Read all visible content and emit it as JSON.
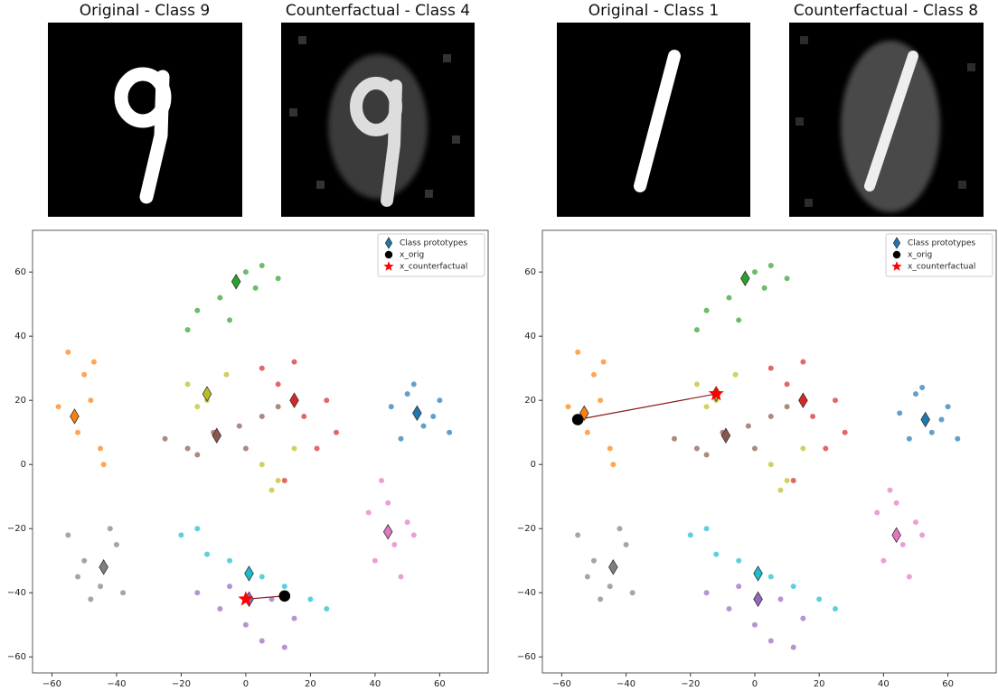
{
  "chart_data": [
    {
      "type": "image",
      "title": "Original - Class 9"
    },
    {
      "type": "image",
      "title": "Counterfactual - Class 4"
    },
    {
      "type": "image",
      "title": "Original - Class 1"
    },
    {
      "type": "image",
      "title": "Counterfactual - Class 8"
    },
    {
      "type": "scatter",
      "xlim": [
        -66,
        75
      ],
      "ylim": [
        -65,
        73
      ],
      "xticks": [
        {
          "value": -60,
          "label": "−60"
        },
        {
          "value": -40,
          "label": "−40"
        },
        {
          "value": -20,
          "label": "−20"
        },
        0,
        20,
        40,
        60
      ],
      "yticks": [
        {
          "value": -60,
          "label": "−60"
        },
        {
          "value": -40,
          "label": "−40"
        },
        {
          "value": -20,
          "label": "−20"
        },
        0,
        20,
        40,
        60
      ],
      "legend": "upper right",
      "connector_color": "#8b1a1a",
      "series": [
        {
          "color": "#1f77b4",
          "x": [
            45,
            50,
            55,
            60,
            48,
            58,
            63,
            52
          ],
          "values": [
            18,
            22,
            12,
            20,
            8,
            15,
            10,
            25
          ]
        },
        {
          "color": "#ff7f0e",
          "x": [
            -55,
            -50,
            -48,
            -45,
            -58,
            -52,
            -44,
            -47
          ],
          "values": [
            35,
            28,
            20,
            5,
            18,
            10,
            0,
            32
          ]
        },
        {
          "color": "#2ca02c",
          "x": [
            -15,
            -8,
            0,
            5,
            10,
            -5,
            -18,
            3
          ],
          "values": [
            48,
            52,
            60,
            62,
            58,
            45,
            42,
            55
          ]
        },
        {
          "color": "#d62728",
          "x": [
            5,
            10,
            18,
            25,
            22,
            12,
            28,
            15
          ],
          "values": [
            30,
            25,
            15,
            20,
            5,
            -5,
            10,
            32
          ]
        },
        {
          "color": "#9467bd",
          "x": [
            -15,
            -8,
            0,
            8,
            15,
            5,
            -5,
            12
          ],
          "values": [
            -40,
            -45,
            -50,
            -42,
            -48,
            -55,
            -38,
            -57
          ]
        },
        {
          "color": "#8c564b",
          "x": [
            -25,
            -18,
            -10,
            -2,
            5,
            -15,
            0,
            10
          ],
          "values": [
            8,
            5,
            10,
            12,
            15,
            3,
            5,
            18
          ]
        },
        {
          "color": "#e377c2",
          "x": [
            38,
            42,
            46,
            50,
            40,
            48,
            44,
            52
          ],
          "values": [
            -15,
            -5,
            -25,
            -18,
            -30,
            -35,
            -12,
            -22
          ]
        },
        {
          "color": "#7f7f7f",
          "x": [
            -55,
            -50,
            -45,
            -40,
            -48,
            -42,
            -52,
            -38
          ],
          "values": [
            -22,
            -30,
            -38,
            -25,
            -42,
            -20,
            -35,
            -40
          ]
        },
        {
          "color": "#bcbd22",
          "x": [
            -18,
            -12,
            -6,
            -15,
            5,
            10,
            15,
            8
          ],
          "values": [
            25,
            20,
            28,
            18,
            0,
            -5,
            5,
            -8
          ]
        },
        {
          "color": "#17becf",
          "x": [
            -20,
            -12,
            -5,
            5,
            12,
            20,
            -15,
            25
          ],
          "values": [
            -22,
            -28,
            -30,
            -35,
            -38,
            -42,
            -20,
            -45
          ]
        },
        {
          "name": "Class prototypes",
          "marker": "diamond",
          "colors": [
            "#1f77b4",
            "#ff7f0e",
            "#2ca02c",
            "#d62728",
            "#9467bd",
            "#8c564b",
            "#e377c2",
            "#7f7f7f",
            "#bcbd22",
            "#17becf"
          ],
          "x": [
            53,
            -53,
            -3,
            15,
            1,
            -9,
            44,
            -44,
            -12,
            1
          ],
          "values": [
            16,
            15,
            57,
            20,
            -42,
            9,
            -21,
            -32,
            22,
            -34
          ]
        },
        {
          "name": "x_orig",
          "marker": "circle",
          "color": "#000000",
          "x": [
            12
          ],
          "values": [
            -41
          ]
        },
        {
          "name": "x_counterfactual",
          "marker": "star",
          "color": "#ff0000",
          "x": [
            0
          ],
          "values": [
            -42
          ]
        }
      ]
    },
    {
      "type": "scatter",
      "xlim": [
        -66,
        75
      ],
      "ylim": [
        -65,
        73
      ],
      "xticks": [
        {
          "value": -60,
          "label": "−60"
        },
        {
          "value": -40,
          "label": "−40"
        },
        {
          "value": -20,
          "label": "−20"
        },
        0,
        20,
        40,
        60
      ],
      "yticks": [
        {
          "value": -60,
          "label": "−60"
        },
        {
          "value": -40,
          "label": "−40"
        },
        {
          "value": -20,
          "label": "−20"
        },
        0,
        20,
        40,
        60
      ],
      "legend": "upper right",
      "connector_color": "#8b1a1a",
      "series": [
        {
          "color": "#1f77b4",
          "x": [
            45,
            50,
            55,
            60,
            48,
            58,
            63,
            52
          ],
          "values": [
            16,
            22,
            10,
            18,
            8,
            14,
            8,
            24
          ]
        },
        {
          "color": "#ff7f0e",
          "x": [
            -55,
            -50,
            -48,
            -45,
            -58,
            -52,
            -44,
            -47
          ],
          "values": [
            35,
            28,
            20,
            5,
            18,
            10,
            0,
            32
          ]
        },
        {
          "color": "#2ca02c",
          "x": [
            -15,
            -8,
            0,
            5,
            10,
            -5,
            -18,
            3
          ],
          "values": [
            48,
            52,
            60,
            62,
            58,
            45,
            42,
            55
          ]
        },
        {
          "color": "#d62728",
          "x": [
            5,
            10,
            18,
            25,
            22,
            12,
            28,
            15
          ],
          "values": [
            30,
            25,
            15,
            20,
            5,
            -5,
            10,
            32
          ]
        },
        {
          "color": "#9467bd",
          "x": [
            -15,
            -8,
            0,
            8,
            15,
            5,
            -5,
            12
          ],
          "values": [
            -40,
            -45,
            -50,
            -42,
            -48,
            -55,
            -38,
            -57
          ]
        },
        {
          "color": "#8c564b",
          "x": [
            -25,
            -18,
            -10,
            -2,
            5,
            -15,
            0,
            10
          ],
          "values": [
            8,
            5,
            10,
            12,
            15,
            3,
            5,
            18
          ]
        },
        {
          "color": "#e377c2",
          "x": [
            38,
            42,
            46,
            50,
            40,
            48,
            44,
            52
          ],
          "values": [
            -15,
            -8,
            -25,
            -18,
            -30,
            -35,
            -12,
            -22
          ]
        },
        {
          "color": "#7f7f7f",
          "x": [
            -55,
            -50,
            -45,
            -40,
            -48,
            -42,
            -52,
            -38
          ],
          "values": [
            -22,
            -30,
            -38,
            -25,
            -42,
            -20,
            -35,
            -40
          ]
        },
        {
          "color": "#bcbd22",
          "x": [
            -18,
            -12,
            -6,
            -15,
            5,
            10,
            15,
            8
          ],
          "values": [
            25,
            20,
            28,
            18,
            0,
            -5,
            5,
            -8
          ]
        },
        {
          "color": "#17becf",
          "x": [
            -20,
            -12,
            -5,
            5,
            12,
            20,
            -15,
            25
          ],
          "values": [
            -22,
            -28,
            -30,
            -35,
            -38,
            -42,
            -20,
            -45
          ]
        },
        {
          "name": "Class prototypes",
          "marker": "diamond",
          "colors": [
            "#1f77b4",
            "#ff7f0e",
            "#2ca02c",
            "#d62728",
            "#9467bd",
            "#8c564b",
            "#e377c2",
            "#7f7f7f",
            "#bcbd22",
            "#17becf"
          ],
          "x": [
            53,
            -53,
            -3,
            15,
            1,
            -9,
            44,
            -44,
            -12,
            1
          ],
          "values": [
            14,
            16,
            58,
            20,
            -42,
            9,
            -22,
            -32,
            22,
            -34
          ]
        },
        {
          "name": "x_orig",
          "marker": "circle",
          "color": "#000000",
          "x": [
            -55
          ],
          "values": [
            14
          ]
        },
        {
          "name": "x_counterfactual",
          "marker": "star",
          "color": "#ff0000",
          "x": [
            -12
          ],
          "values": [
            22
          ]
        }
      ]
    }
  ]
}
